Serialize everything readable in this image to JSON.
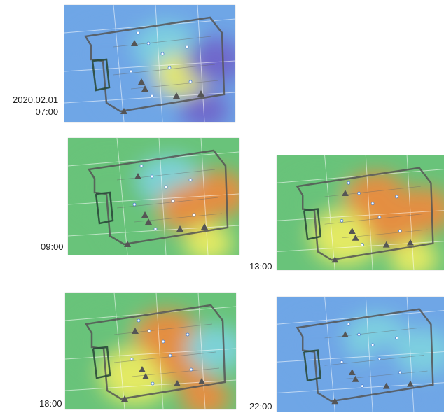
{
  "panels": [
    {
      "id": "p0700",
      "date": "2020.02.01",
      "time": "07:00",
      "hotspots": [
        "blue",
        "blue",
        "cyan",
        "yellow",
        "purple",
        "purple"
      ]
    },
    {
      "id": "p0900",
      "time": "09:00",
      "hotspots": [
        "green",
        "green",
        "cyan",
        "orange",
        "orange",
        "yellow"
      ]
    },
    {
      "id": "p1300",
      "time": "13:00",
      "hotspots": [
        "green",
        "yellow",
        "orange",
        "orange",
        "orange",
        "yellow"
      ]
    },
    {
      "id": "p1800",
      "time": "18:00",
      "hotspots": [
        "green",
        "yellow",
        "orange",
        "orange",
        "cyan",
        "orange"
      ]
    },
    {
      "id": "p2200",
      "time": "22:00",
      "hotspots": [
        "blue",
        "blue",
        "cyan",
        "blue",
        "cyan",
        "blue"
      ]
    }
  ],
  "legend_colors": {
    "purple": "#6f63c9",
    "blue": "#6fa6e6",
    "cyan": "#7fd3df",
    "green": "#69c37a",
    "yellow": "#eded62",
    "orange": "#ef8a3c",
    "red": "#e0402c"
  }
}
